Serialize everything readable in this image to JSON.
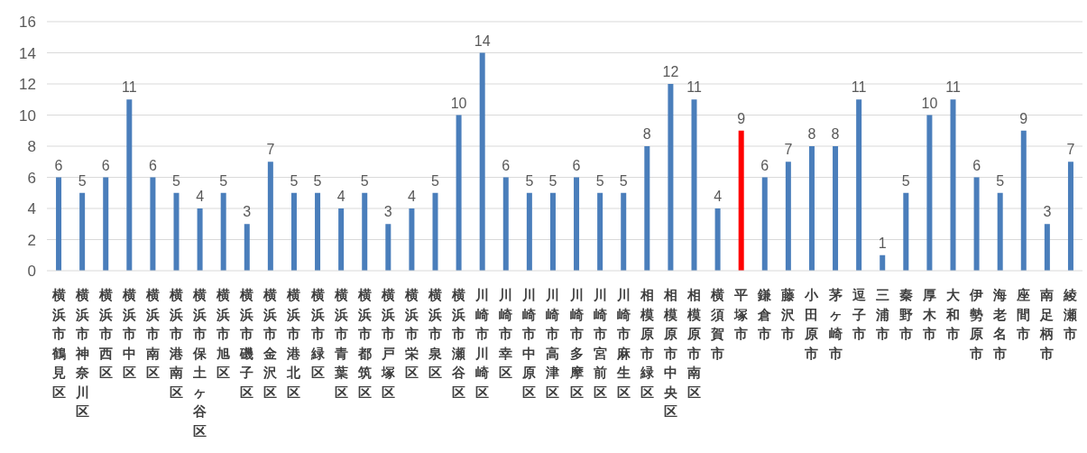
{
  "chart_data": {
    "type": "bar",
    "categories": [
      "横浜市鶴見区",
      "横浜市神奈川区",
      "横浜市西区",
      "横浜市中区",
      "横浜市南区",
      "横浜市港南区",
      "横浜市保土ヶ谷区",
      "横浜市旭区",
      "横浜市磯子区",
      "横浜市金沢区",
      "横浜市港北区",
      "横浜市緑区",
      "横浜市青葉区",
      "横浜市都筑区",
      "横浜市戸塚区",
      "横浜市栄区",
      "横浜市泉区",
      "横浜市瀬谷区",
      "川崎市川崎区",
      "川崎市幸区",
      "川崎市中原区",
      "川崎市高津区",
      "川崎市多摩区",
      "川崎市宮前区",
      "川崎市麻生区",
      "相模原市緑区",
      "相模原市中央区",
      "相模原市南区",
      "横須賀市",
      "平塚市",
      "鎌倉市",
      "藤沢市",
      "小田原市",
      "茅ヶ崎市",
      "逗子市",
      "三浦市",
      "秦野市",
      "厚木市",
      "大和市",
      "伊勢原市",
      "海老名市",
      "座間市",
      "南足柄市",
      "綾瀬市"
    ],
    "values": [
      6,
      5,
      6,
      11,
      6,
      5,
      4,
      5,
      3,
      7,
      5,
      5,
      4,
      5,
      3,
      4,
      5,
      10,
      14,
      6,
      5,
      5,
      6,
      5,
      5,
      8,
      12,
      11,
      4,
      9,
      6,
      7,
      8,
      8,
      11,
      1,
      5,
      10,
      11,
      6,
      5,
      9,
      3,
      7
    ],
    "colors": [
      "#4a7ebb",
      "#4a7ebb",
      "#4a7ebb",
      "#4a7ebb",
      "#4a7ebb",
      "#4a7ebb",
      "#4a7ebb",
      "#4a7ebb",
      "#4a7ebb",
      "#4a7ebb",
      "#4a7ebb",
      "#4a7ebb",
      "#4a7ebb",
      "#4a7ebb",
      "#4a7ebb",
      "#4a7ebb",
      "#4a7ebb",
      "#4a7ebb",
      "#4a7ebb",
      "#4a7ebb",
      "#4a7ebb",
      "#4a7ebb",
      "#4a7ebb",
      "#4a7ebb",
      "#4a7ebb",
      "#4a7ebb",
      "#4a7ebb",
      "#4a7ebb",
      "#4a7ebb",
      "#ff0000",
      "#4a7ebb",
      "#4a7ebb",
      "#4a7ebb",
      "#4a7ebb",
      "#4a7ebb",
      "#4a7ebb",
      "#4a7ebb",
      "#4a7ebb",
      "#4a7ebb",
      "#4a7ebb",
      "#4a7ebb",
      "#4a7ebb",
      "#4a7ebb",
      "#4a7ebb"
    ],
    "ylim": [
      0,
      16
    ],
    "yticks": [
      0,
      2,
      4,
      6,
      8,
      10,
      12,
      14,
      16
    ],
    "grid": "y",
    "data_labels": true
  }
}
